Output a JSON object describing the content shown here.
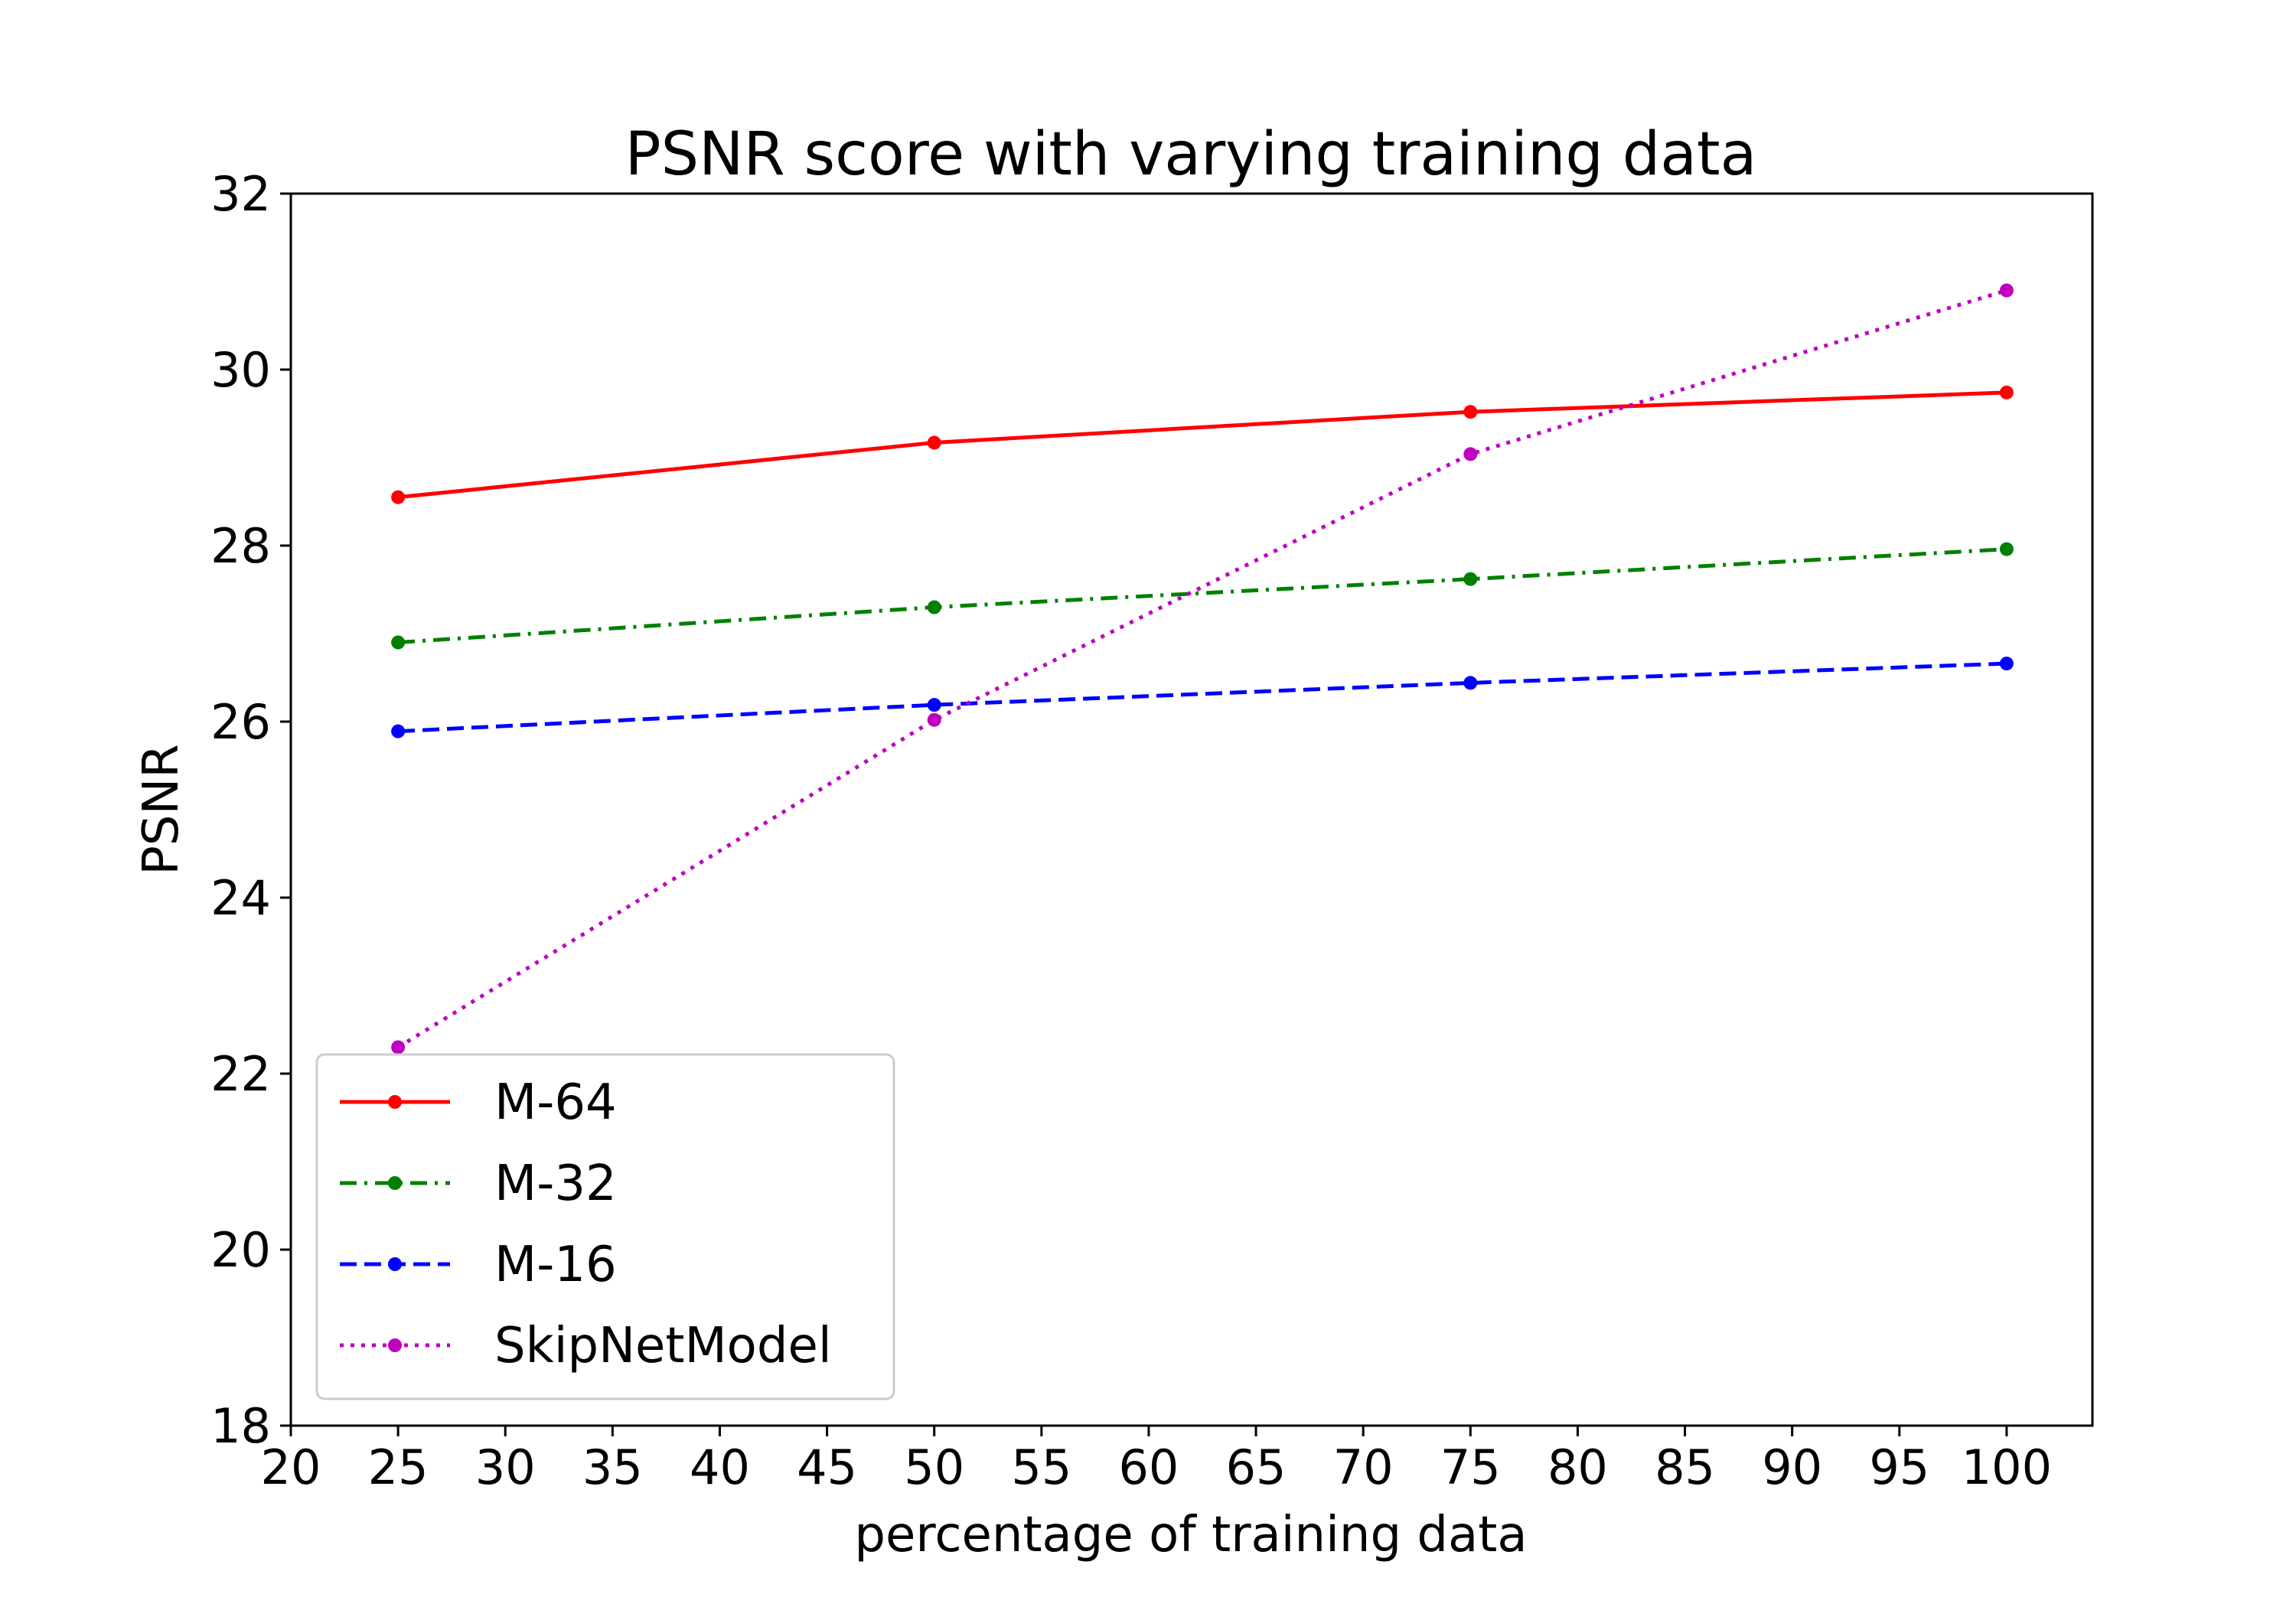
{
  "chart_data": {
    "type": "line",
    "title": "PSNR score with varying training data",
    "xlabel": "percentage of training data",
    "ylabel": "PSNR",
    "xlim": [
      20,
      104
    ],
    "ylim": [
      18,
      32
    ],
    "xticks": [
      20,
      25,
      30,
      35,
      40,
      45,
      50,
      55,
      60,
      65,
      70,
      75,
      80,
      85,
      90,
      95,
      100
    ],
    "yticks": [
      18,
      20,
      22,
      24,
      26,
      28,
      30,
      32
    ],
    "grid": false,
    "legend_position": "lower-left",
    "x": [
      25,
      50,
      75,
      100
    ],
    "series": [
      {
        "name": "M-64",
        "values": [
          28.55,
          29.17,
          29.52,
          29.74
        ],
        "color": "#ff0000",
        "dash": "solid"
      },
      {
        "name": "M-32",
        "values": [
          26.9,
          27.3,
          27.62,
          27.96
        ],
        "color": "#008000",
        "dash": "dashdot"
      },
      {
        "name": "M-16",
        "values": [
          25.89,
          26.19,
          26.44,
          26.66
        ],
        "color": "#0000ff",
        "dash": "dashed"
      },
      {
        "name": "SkipNetModel",
        "values": [
          22.3,
          26.02,
          29.04,
          30.9
        ],
        "color": "#bf00bf",
        "dash": "dotted"
      }
    ]
  }
}
